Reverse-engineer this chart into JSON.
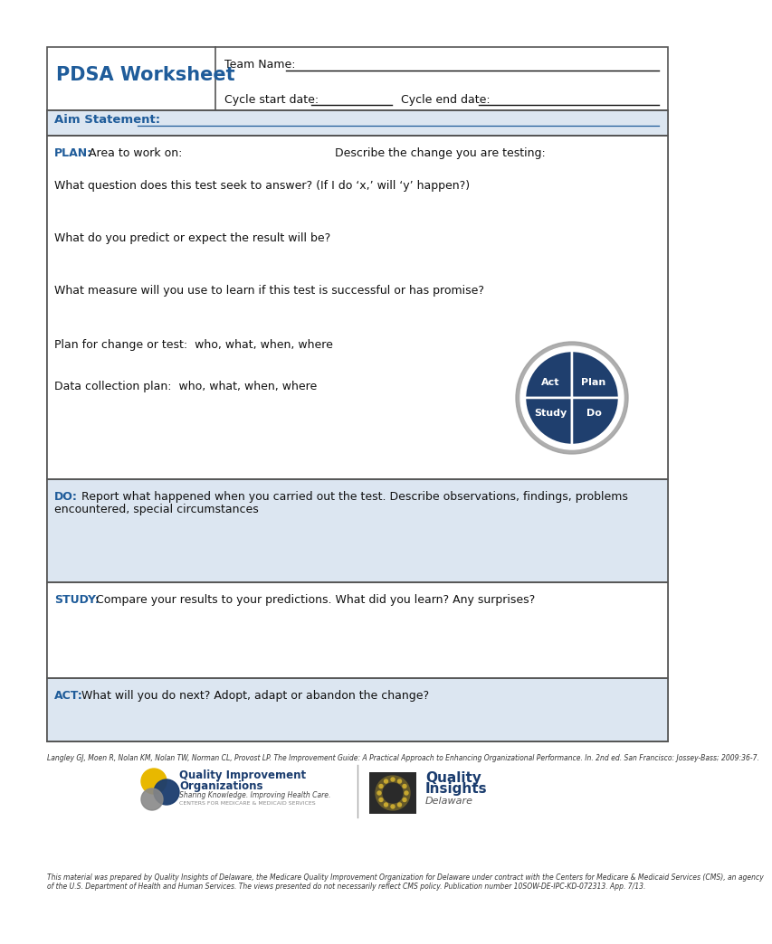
{
  "bg_color": "#ffffff",
  "border_color": "#555555",
  "pdsa_title": "PDSA Worksheet",
  "pdsa_title_color": "#1F5C9A",
  "team_name_label": "Team Name:  ",
  "cycle_start_label": "Cycle start date:  ",
  "cycle_end_label": "Cycle end date:  ",
  "aim_label": "Aim Statement:",
  "aim_underline_color": "#1F5C9A",
  "plan_label": "PLAN:",
  "plan_area_text": "  Area to work on:",
  "describe_text": "Describe the change you are testing:",
  "q1": "What question does this test seek to answer? (If I do ‘x,’ will ‘y’ happen?)",
  "q2": "What do you predict or expect the result will be?",
  "q3": "What measure will you use to learn if this test is successful or has promise?",
  "q4": "Plan for change or test:  who, what, when, where",
  "q5": "Data collection plan:  who, what, when, where",
  "do_label": "DO:",
  "do_text": "  Report what happened when you carried out the test. Describe observations, findings, problems\nencountered, special circumstances",
  "study_label": "STUDY:",
  "study_text": "  Compare your results to your predictions. What did you learn? Any surprises?",
  "act_label": "ACT:",
  "act_text": "  What will you do next? Adopt, adapt or abandon the change?",
  "light_blue_bg": "#dce6f1",
  "dark_blue": "#1F3F6E",
  "wheel_dark": "#1F3F6E",
  "wheel_line": "#ffffff",
  "wheel_outer_ring": "#a0a0a0",
  "citation": "Langley GJ, Moen R, Nolan KM, Nolan TW, Norman CL, Provost LP. The Improvement Guide: A Practical Approach to Enhancing Organizational Performance. In. 2nd ed. San Francisco: Jossey-Bass; 2009:36-7.",
  "footer_text": "This material was prepared by Quality Insights of Delaware, the Medicare Quality Improvement Organization for Delaware under contract with the Centers for Medicare & Medicaid Services (CMS), an agency\nof the U.S. Department of Health and Human Services. The views presented do not necessarily reflect CMS policy. Publication number 10SOW-DE-IPC-KD-072313. App. 7/13.",
  "qio_text1": "Quality Improvement",
  "qio_text2": "Organizations",
  "qio_text3": "Sharing Knowledge. Improving Health Care.",
  "qio_text4": "CENTERS FOR MEDICARE & MEDICAID SERVICES",
  "qi_text1": "Quality",
  "qi_text2": "Insights",
  "qi_text3": "Delaware"
}
